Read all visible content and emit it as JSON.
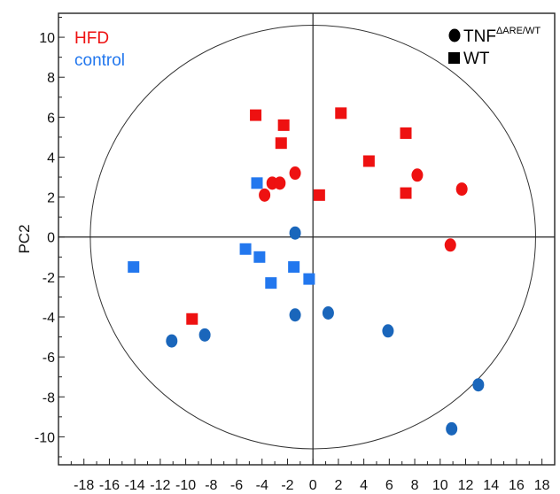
{
  "chart_data": {
    "type": "scatter",
    "title": "",
    "xlabel": "",
    "ylabel": "PC2",
    "xlim": [
      -20,
      19
    ],
    "ylim": [
      -11.4,
      11.2
    ],
    "x_ticks": [
      -18,
      -16,
      -14,
      -12,
      -10,
      -8,
      -6,
      -4,
      -2,
      0,
      2,
      4,
      6,
      8,
      10,
      12,
      14,
      16,
      18
    ],
    "y_ticks": [
      10,
      8,
      6,
      4,
      2,
      0,
      -2,
      -4,
      -6,
      -8,
      -10
    ],
    "confidence_ellipse": {
      "center": [
        0,
        0
      ],
      "rx": 17.5,
      "ry": 10.6
    },
    "grid": false,
    "color_legend": [
      {
        "label": "HFD",
        "color": "#ee1111"
      },
      {
        "label": "control",
        "color": "#2277ee"
      }
    ],
    "shape_legend": [
      {
        "label_main": "TNF",
        "label_sup": "ΔARE/WT",
        "shape": "circle"
      },
      {
        "label_main": "WT",
        "label_sup": "",
        "shape": "square"
      }
    ],
    "series": [
      {
        "color_group": "HFD",
        "shape": "circle",
        "color": "#ee1111",
        "points": [
          [
            -3.2,
            2.7
          ],
          [
            -2.6,
            2.7
          ],
          [
            -1.4,
            3.2
          ],
          [
            -3.8,
            2.1
          ],
          [
            8.2,
            3.1
          ],
          [
            11.7,
            2.4
          ],
          [
            10.8,
            -0.4
          ]
        ]
      },
      {
        "color_group": "HFD",
        "shape": "square",
        "color": "#ee1111",
        "points": [
          [
            -4.5,
            6.1
          ],
          [
            -2.3,
            5.6
          ],
          [
            -2.5,
            4.7
          ],
          [
            2.2,
            6.2
          ],
          [
            4.4,
            3.8
          ],
          [
            7.3,
            5.2
          ],
          [
            7.3,
            2.2
          ],
          [
            0.5,
            2.1
          ],
          [
            -9.5,
            -4.1
          ]
        ]
      },
      {
        "color_group": "control",
        "shape": "circle",
        "color": "#1a66bb",
        "points": [
          [
            -1.4,
            0.2
          ],
          [
            -1.4,
            -3.9
          ],
          [
            1.2,
            -3.8
          ],
          [
            5.9,
            -4.7
          ],
          [
            -11.1,
            -5.2
          ],
          [
            -8.5,
            -4.9
          ],
          [
            13,
            -7.4
          ],
          [
            10.9,
            -9.6
          ]
        ]
      },
      {
        "color_group": "control",
        "shape": "square",
        "color": "#2277ee",
        "points": [
          [
            -14.1,
            -1.5
          ],
          [
            -5.3,
            -0.6
          ],
          [
            -4.2,
            -1
          ],
          [
            -4.4,
            2.7
          ],
          [
            -1.5,
            -1.5
          ],
          [
            -3.3,
            -2.3
          ],
          [
            -0.3,
            -2.1
          ]
        ]
      }
    ]
  }
}
